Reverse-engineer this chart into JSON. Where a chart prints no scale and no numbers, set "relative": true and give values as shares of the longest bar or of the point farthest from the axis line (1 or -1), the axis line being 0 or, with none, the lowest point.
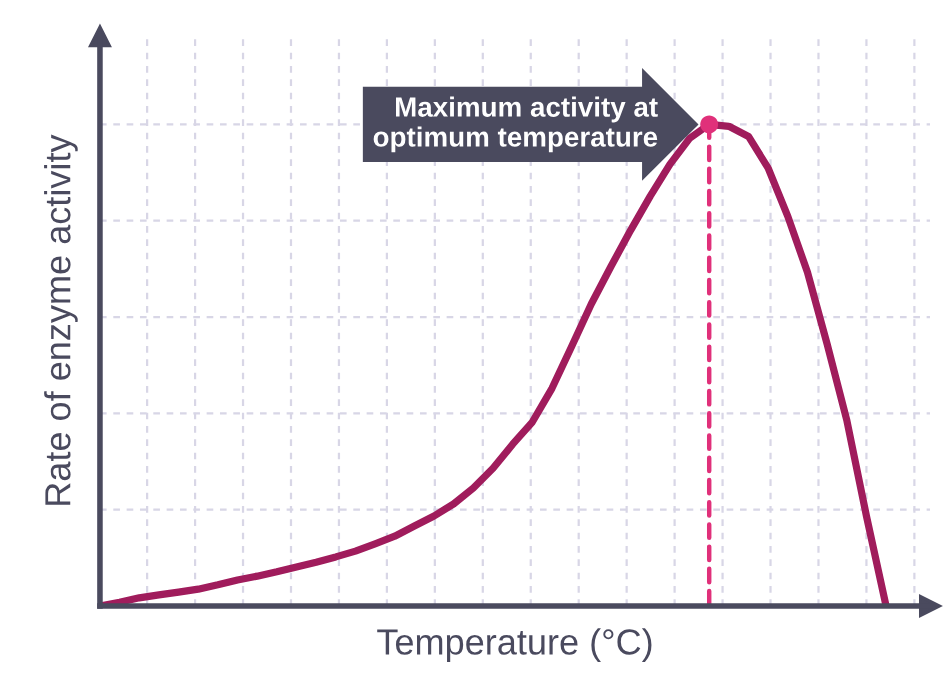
{
  "chart_data": {
    "type": "line",
    "relative": true,
    "xlabel": "Temperature (°C)",
    "ylabel": "Rate of enzyme activity",
    "grid": true,
    "tick_labels": false,
    "legend": false,
    "marker": "none",
    "line_style": "solid",
    "annotations": [
      "Maximum activity at\noptimum temperature"
    ],
    "categories": [
      null,
      null,
      null,
      null,
      null,
      null,
      null,
      null,
      null,
      null,
      null,
      null,
      null,
      null,
      null,
      null,
      null,
      null,
      null,
      null,
      null,
      null,
      null,
      null,
      null,
      null,
      null,
      null,
      null,
      null,
      null,
      null,
      null,
      null,
      null,
      null,
      null,
      null,
      null,
      null,
      null
    ],
    "series": [
      {
        "color": "#a01c5c",
        "values": [
          0,
          0.008,
          0.017,
          0.023,
          0.029,
          0.035,
          0.044,
          0.054,
          0.062,
          0.071,
          0.081,
          0.091,
          0.102,
          0.114,
          0.129,
          0.145,
          0.166,
          0.187,
          0.212,
          0.245,
          0.286,
          0.336,
          0.382,
          0.452,
          0.539,
          0.627,
          0.705,
          0.78,
          0.851,
          0.917,
          0.971,
          1.0,
          0.996,
          0.975,
          0.909,
          0.809,
          0.693,
          0.544,
          0.386,
          0.187,
          0
        ]
      }
    ]
  }
}
